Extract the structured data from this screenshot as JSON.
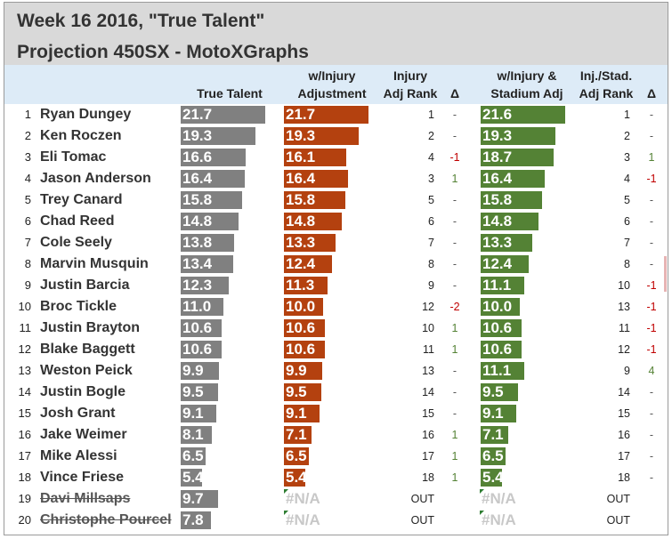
{
  "title": {
    "line1": "Week 16 2016, \"True Talent\"",
    "line2": "Projection 450SX - MotoXGraphs"
  },
  "headers": {
    "true_talent": "True Talent",
    "injury_adj_l1": "w/Injury",
    "injury_adj_l2": "Adjustment",
    "injury_rank_l1": "Injury",
    "injury_rank_l2": "Adj Rank",
    "delta1": "Δ",
    "stadium_l1": "w/Injury &",
    "stadium_l2": "Stadium Adj",
    "stad_rank_l1": "Inj./Stad.",
    "stad_rank_l2": "Adj Rank",
    "delta2": "Δ"
  },
  "colors": {
    "true_talent_bar": "#808080",
    "injury_bar": "#b4410f",
    "stadium_bar": "#548235",
    "delta_up": "#548235",
    "delta_down": "#c00000",
    "delta_neutral": "#555555"
  },
  "bar_scale_max": 21.7,
  "rows": [
    {
      "n": "1",
      "name": "Ryan Dungey",
      "tt": "21.7",
      "inj": "21.7",
      "inj_rank": "1",
      "d1": "-",
      "stad": "21.6",
      "stad_rank": "1",
      "d2": "-",
      "struck": false
    },
    {
      "n": "2",
      "name": "Ken Roczen",
      "tt": "19.3",
      "inj": "19.3",
      "inj_rank": "2",
      "d1": "-",
      "stad": "19.3",
      "stad_rank": "2",
      "d2": "-",
      "struck": false
    },
    {
      "n": "3",
      "name": "Eli Tomac",
      "tt": "16.6",
      "inj": "16.1",
      "inj_rank": "4",
      "d1": "-1",
      "stad": "18.7",
      "stad_rank": "3",
      "d2": "1",
      "struck": false
    },
    {
      "n": "4",
      "name": "Jason Anderson",
      "tt": "16.4",
      "inj": "16.4",
      "inj_rank": "3",
      "d1": "1",
      "stad": "16.4",
      "stad_rank": "4",
      "d2": "-1",
      "struck": false
    },
    {
      "n": "5",
      "name": "Trey Canard",
      "tt": "15.8",
      "inj": "15.8",
      "inj_rank": "5",
      "d1": "-",
      "stad": "15.8",
      "stad_rank": "5",
      "d2": "-",
      "struck": false
    },
    {
      "n": "6",
      "name": "Chad Reed",
      "tt": "14.8",
      "inj": "14.8",
      "inj_rank": "6",
      "d1": "-",
      "stad": "14.8",
      "stad_rank": "6",
      "d2": "-",
      "struck": false
    },
    {
      "n": "7",
      "name": "Cole Seely",
      "tt": "13.8",
      "inj": "13.3",
      "inj_rank": "7",
      "d1": "-",
      "stad": "13.3",
      "stad_rank": "7",
      "d2": "-",
      "struck": false
    },
    {
      "n": "8",
      "name": "Marvin Musquin",
      "tt": "13.4",
      "inj": "12.4",
      "inj_rank": "8",
      "d1": "-",
      "stad": "12.4",
      "stad_rank": "8",
      "d2": "-",
      "struck": false
    },
    {
      "n": "9",
      "name": "Justin Barcia",
      "tt": "12.3",
      "inj": "11.3",
      "inj_rank": "9",
      "d1": "-",
      "stad": "11.1",
      "stad_rank": "10",
      "d2": "-1",
      "struck": false
    },
    {
      "n": "10",
      "name": "Broc Tickle",
      "tt": "11.0",
      "inj": "10.0",
      "inj_rank": "12",
      "d1": "-2",
      "stad": "10.0",
      "stad_rank": "13",
      "d2": "-1",
      "struck": false
    },
    {
      "n": "11",
      "name": "Justin Brayton",
      "tt": "10.6",
      "inj": "10.6",
      "inj_rank": "10",
      "d1": "1",
      "stad": "10.6",
      "stad_rank": "11",
      "d2": "-1",
      "struck": false
    },
    {
      "n": "12",
      "name": "Blake Baggett",
      "tt": "10.6",
      "inj": "10.6",
      "inj_rank": "11",
      "d1": "1",
      "stad": "10.6",
      "stad_rank": "12",
      "d2": "-1",
      "struck": false
    },
    {
      "n": "13",
      "name": "Weston Peick",
      "tt": "9.9",
      "inj": "9.9",
      "inj_rank": "13",
      "d1": "-",
      "stad": "11.1",
      "stad_rank": "9",
      "d2": "4",
      "struck": false
    },
    {
      "n": "14",
      "name": "Justin Bogle",
      "tt": "9.5",
      "inj": "9.5",
      "inj_rank": "14",
      "d1": "-",
      "stad": "9.5",
      "stad_rank": "14",
      "d2": "-",
      "struck": false
    },
    {
      "n": "15",
      "name": "Josh Grant",
      "tt": "9.1",
      "inj": "9.1",
      "inj_rank": "15",
      "d1": "-",
      "stad": "9.1",
      "stad_rank": "15",
      "d2": "-",
      "struck": false
    },
    {
      "n": "16",
      "name": "Jake Weimer",
      "tt": "8.1",
      "inj": "7.1",
      "inj_rank": "16",
      "d1": "1",
      "stad": "7.1",
      "stad_rank": "16",
      "d2": "-",
      "struck": false
    },
    {
      "n": "17",
      "name": "Mike Alessi",
      "tt": "6.5",
      "inj": "6.5",
      "inj_rank": "17",
      "d1": "1",
      "stad": "6.5",
      "stad_rank": "17",
      "d2": "-",
      "struck": false
    },
    {
      "n": "18",
      "name": "Vince Friese",
      "tt": "5.4",
      "inj": "5.4",
      "inj_rank": "18",
      "d1": "1",
      "stad": "5.4",
      "stad_rank": "18",
      "d2": "-",
      "struck": false
    },
    {
      "n": "19",
      "name": "Davi Millsaps",
      "tt": "9.7",
      "inj": "#N/A",
      "inj_rank": "OUT",
      "d1": "",
      "stad": "#N/A",
      "stad_rank": "OUT",
      "d2": "",
      "struck": true
    },
    {
      "n": "20",
      "name": "Christophe Pourcel",
      "tt": "7.8",
      "inj": "#N/A",
      "inj_rank": "OUT",
      "d1": "",
      "stad": "#N/A",
      "stad_rank": "OUT",
      "d2": "",
      "struck": true
    }
  ]
}
